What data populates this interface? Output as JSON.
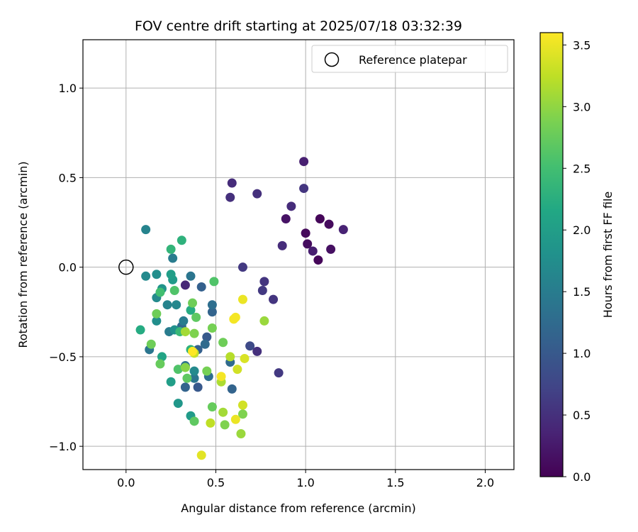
{
  "chart_data": {
    "type": "scatter",
    "title": "FOV centre drift starting at 2025/07/18 03:32:39",
    "xlabel": "Angular distance from reference (arcmin)",
    "ylabel": "Rotation from reference (arcmin)",
    "xlim": [
      -0.24,
      2.16
    ],
    "ylim": [
      -1.13,
      1.27
    ],
    "xticks": [
      "0.0",
      "0.5",
      "1.0",
      "1.5",
      "2.0"
    ],
    "yticks": [
      "−1.0",
      "−0.5",
      "0.0",
      "0.5",
      "1.0"
    ],
    "xtick_values": [
      0.0,
      0.5,
      1.0,
      1.5,
      2.0
    ],
    "ytick_values": [
      -1.0,
      -0.5,
      0.0,
      0.5,
      1.0
    ],
    "grid": true,
    "legend": {
      "placement": "top-right",
      "entries": [
        {
          "label": "Reference platepar",
          "marker": "open-circle"
        }
      ]
    },
    "reference_point": {
      "x": 0.0,
      "y": 0.0
    },
    "colorbar": {
      "label": "Hours from first FF file",
      "colormap": "viridis",
      "range": [
        0.0,
        3.6
      ],
      "ticks": [
        "0.0",
        "0.5",
        "1.0",
        "1.5",
        "2.0",
        "2.5",
        "3.0",
        "3.5"
      ],
      "tick_values": [
        0.0,
        0.5,
        1.0,
        1.5,
        2.0,
        2.5,
        3.0,
        3.5
      ]
    },
    "points": [
      {
        "x": 1.08,
        "y": 0.27,
        "c": 0.05
      },
      {
        "x": 1.07,
        "y": 0.04,
        "c": 0.05
      },
      {
        "x": 1.0,
        "y": 0.19,
        "c": 0.08
      },
      {
        "x": 1.13,
        "y": 0.24,
        "c": 0.1
      },
      {
        "x": 1.01,
        "y": 0.13,
        "c": 0.12
      },
      {
        "x": 1.14,
        "y": 0.1,
        "c": 0.15
      },
      {
        "x": 0.89,
        "y": 0.27,
        "c": 0.18
      },
      {
        "x": 1.04,
        "y": 0.09,
        "c": 0.3
      },
      {
        "x": 0.99,
        "y": 0.59,
        "c": 0.32
      },
      {
        "x": 1.21,
        "y": 0.21,
        "c": 0.35
      },
      {
        "x": 0.33,
        "y": -0.1,
        "c": 0.4
      },
      {
        "x": 0.87,
        "y": 0.12,
        "c": 0.45
      },
      {
        "x": 0.59,
        "y": 0.47,
        "c": 0.45
      },
      {
        "x": 0.92,
        "y": 0.34,
        "c": 0.45
      },
      {
        "x": 0.73,
        "y": 0.41,
        "c": 0.5
      },
      {
        "x": 0.58,
        "y": 0.39,
        "c": 0.5
      },
      {
        "x": 0.73,
        "y": -0.47,
        "c": 0.5
      },
      {
        "x": 0.77,
        "y": -0.08,
        "c": 0.55
      },
      {
        "x": 0.82,
        "y": -0.18,
        "c": 0.55
      },
      {
        "x": 0.99,
        "y": 0.44,
        "c": 0.55
      },
      {
        "x": 0.65,
        "y": 0.0,
        "c": 0.6
      },
      {
        "x": 0.85,
        "y": -0.59,
        "c": 0.6
      },
      {
        "x": 0.76,
        "y": -0.13,
        "c": 0.6
      },
      {
        "x": 0.69,
        "y": -0.44,
        "c": 0.8
      },
      {
        "x": 0.4,
        "y": -0.67,
        "c": 1.0
      },
      {
        "x": 0.45,
        "y": -0.39,
        "c": 1.0
      },
      {
        "x": 0.42,
        "y": -0.11,
        "c": 1.1
      },
      {
        "x": 0.4,
        "y": -0.46,
        "c": 1.1
      },
      {
        "x": 0.33,
        "y": -0.67,
        "c": 1.15
      },
      {
        "x": 0.48,
        "y": -0.25,
        "c": 1.15
      },
      {
        "x": 0.59,
        "y": -0.68,
        "c": 1.15
      },
      {
        "x": 0.31,
        "y": -0.33,
        "c": 1.2
      },
      {
        "x": 0.58,
        "y": -0.53,
        "c": 1.25
      },
      {
        "x": 0.44,
        "y": -0.43,
        "c": 1.25
      },
      {
        "x": 0.48,
        "y": -0.21,
        "c": 1.3
      },
      {
        "x": 0.46,
        "y": -0.61,
        "c": 1.3
      },
      {
        "x": 0.33,
        "y": -0.55,
        "c": 1.35
      },
      {
        "x": 0.13,
        "y": -0.46,
        "c": 1.4
      },
      {
        "x": 0.36,
        "y": -0.05,
        "c": 1.4
      },
      {
        "x": 0.38,
        "y": -0.62,
        "c": 1.4
      },
      {
        "x": 0.26,
        "y": 0.05,
        "c": 1.5
      },
      {
        "x": 0.32,
        "y": -0.3,
        "c": 1.5
      },
      {
        "x": 0.24,
        "y": -0.36,
        "c": 1.5
      },
      {
        "x": 0.11,
        "y": 0.21,
        "c": 1.6
      },
      {
        "x": 0.23,
        "y": -0.21,
        "c": 1.6
      },
      {
        "x": 0.28,
        "y": -0.21,
        "c": 1.65
      },
      {
        "x": 0.11,
        "y": -0.05,
        "c": 1.7
      },
      {
        "x": 0.17,
        "y": -0.17,
        "c": 1.7
      },
      {
        "x": 0.38,
        "y": -0.58,
        "c": 1.7
      },
      {
        "x": 0.17,
        "y": -0.3,
        "c": 1.75
      },
      {
        "x": 0.17,
        "y": -0.04,
        "c": 1.75
      },
      {
        "x": 0.27,
        "y": -0.35,
        "c": 1.8
      },
      {
        "x": 0.2,
        "y": -0.12,
        "c": 1.85
      },
      {
        "x": 0.29,
        "y": -0.76,
        "c": 1.9
      },
      {
        "x": 0.36,
        "y": -0.83,
        "c": 1.95
      },
      {
        "x": 0.26,
        "y": -0.07,
        "c": 1.95
      },
      {
        "x": 0.25,
        "y": -0.04,
        "c": 2.0
      },
      {
        "x": 0.25,
        "y": -0.64,
        "c": 2.0
      },
      {
        "x": 0.2,
        "y": -0.5,
        "c": 2.1
      },
      {
        "x": 0.36,
        "y": -0.24,
        "c": 2.2
      },
      {
        "x": 0.08,
        "y": -0.35,
        "c": 2.2
      },
      {
        "x": 0.36,
        "y": -0.46,
        "c": 2.3
      },
      {
        "x": 0.31,
        "y": 0.15,
        "c": 2.3
      },
      {
        "x": 0.25,
        "y": 0.1,
        "c": 2.35
      },
      {
        "x": 0.3,
        "y": -0.36,
        "c": 2.4
      },
      {
        "x": 0.19,
        "y": -0.14,
        "c": 2.5
      },
      {
        "x": 0.27,
        "y": -0.13,
        "c": 2.6
      },
      {
        "x": 0.29,
        "y": -0.57,
        "c": 2.6
      },
      {
        "x": 0.49,
        "y": -0.08,
        "c": 2.6
      },
      {
        "x": 0.34,
        "y": -0.62,
        "c": 2.7
      },
      {
        "x": 0.38,
        "y": -0.86,
        "c": 2.7
      },
      {
        "x": 0.39,
        "y": -0.28,
        "c": 2.7
      },
      {
        "x": 0.48,
        "y": -0.78,
        "c": 2.75
      },
      {
        "x": 0.19,
        "y": -0.54,
        "c": 2.75
      },
      {
        "x": 0.37,
        "y": -0.2,
        "c": 2.8
      },
      {
        "x": 0.14,
        "y": -0.43,
        "c": 2.8
      },
      {
        "x": 0.54,
        "y": -0.42,
        "c": 2.8
      },
      {
        "x": 0.17,
        "y": -0.26,
        "c": 2.8
      },
      {
        "x": 0.48,
        "y": -0.34,
        "c": 2.85
      },
      {
        "x": 0.45,
        "y": -0.58,
        "c": 2.85
      },
      {
        "x": 0.55,
        "y": -0.88,
        "c": 2.9
      },
      {
        "x": 0.65,
        "y": -0.82,
        "c": 2.9
      },
      {
        "x": 0.38,
        "y": -0.37,
        "c": 2.9
      },
      {
        "x": 0.33,
        "y": -0.56,
        "c": 2.95
      },
      {
        "x": 0.77,
        "y": -0.3,
        "c": 3.05
      },
      {
        "x": 0.64,
        "y": -0.93,
        "c": 3.05
      },
      {
        "x": 0.54,
        "y": -0.81,
        "c": 3.1
      },
      {
        "x": 0.33,
        "y": -0.36,
        "c": 3.1
      },
      {
        "x": 0.53,
        "y": -0.64,
        "c": 3.15
      },
      {
        "x": 0.58,
        "y": -0.5,
        "c": 3.2
      },
      {
        "x": 0.47,
        "y": -0.87,
        "c": 3.25
      },
      {
        "x": 0.38,
        "y": -0.48,
        "c": 3.3
      },
      {
        "x": 0.65,
        "y": -0.77,
        "c": 3.35
      },
      {
        "x": 0.62,
        "y": -0.57,
        "c": 3.35
      },
      {
        "x": 0.66,
        "y": -0.51,
        "c": 3.4
      },
      {
        "x": 0.42,
        "y": -1.05,
        "c": 3.45
      },
      {
        "x": 0.65,
        "y": -0.18,
        "c": 3.5
      },
      {
        "x": 0.61,
        "y": -0.85,
        "c": 3.5
      },
      {
        "x": 0.53,
        "y": -0.61,
        "c": 3.55
      },
      {
        "x": 0.6,
        "y": -0.29,
        "c": 3.55
      },
      {
        "x": 0.61,
        "y": -0.28,
        "c": 3.55
      },
      {
        "x": 0.37,
        "y": -0.47,
        "c": 3.6
      }
    ]
  }
}
